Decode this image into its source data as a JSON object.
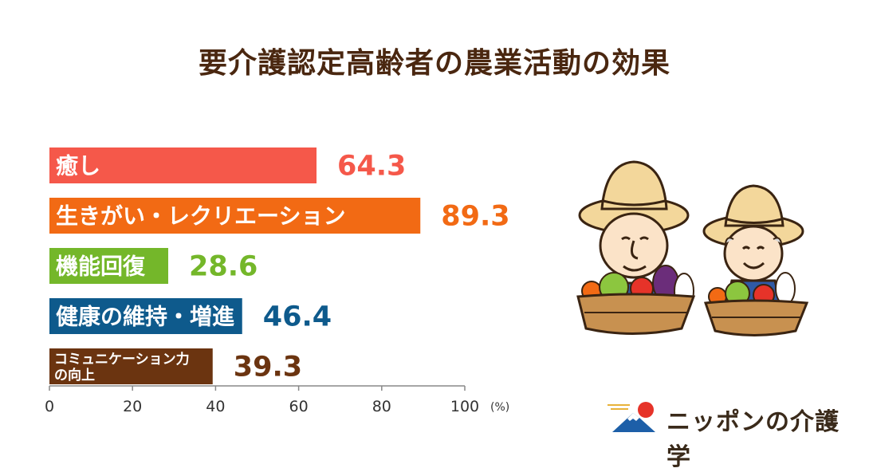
{
  "title": "要介護認定高齢者の農業活動の効果",
  "brand": {
    "name": "ニッポンの介護学",
    "logo_icon": "mount-fuji-sunrise-icon"
  },
  "illustration": {
    "icon": "farmers-with-vegetable-baskets-icon"
  },
  "chart_data": {
    "type": "bar",
    "orientation": "horizontal",
    "categories": [
      "癒し",
      "生きがい・レクリエーション",
      "機能回復",
      "健康の維持・増進",
      "コミュニケーション力の向上"
    ],
    "category_lines": [
      [
        "癒し"
      ],
      [
        "生きがい・レクリエーション"
      ],
      [
        "機能回復"
      ],
      [
        "健康の維持・増進"
      ],
      [
        "コミュニケーション力",
        "の向上"
      ]
    ],
    "values": [
      64.3,
      89.3,
      28.6,
      46.4,
      39.3
    ],
    "value_labels": [
      "64.3",
      "89.3",
      "28.6",
      "46.4",
      "39.3"
    ],
    "colors": [
      "#f5584a",
      "#f26a14",
      "#74b72a",
      "#0e5a8c",
      "#6b3410"
    ],
    "xlim": [
      0,
      100
    ],
    "xticks": [
      0,
      20,
      40,
      60,
      80,
      100
    ],
    "unit": "(%)",
    "title": "要介護認定高齢者の農業活動の効果",
    "xlabel": "",
    "ylabel": "",
    "grid": false
  }
}
